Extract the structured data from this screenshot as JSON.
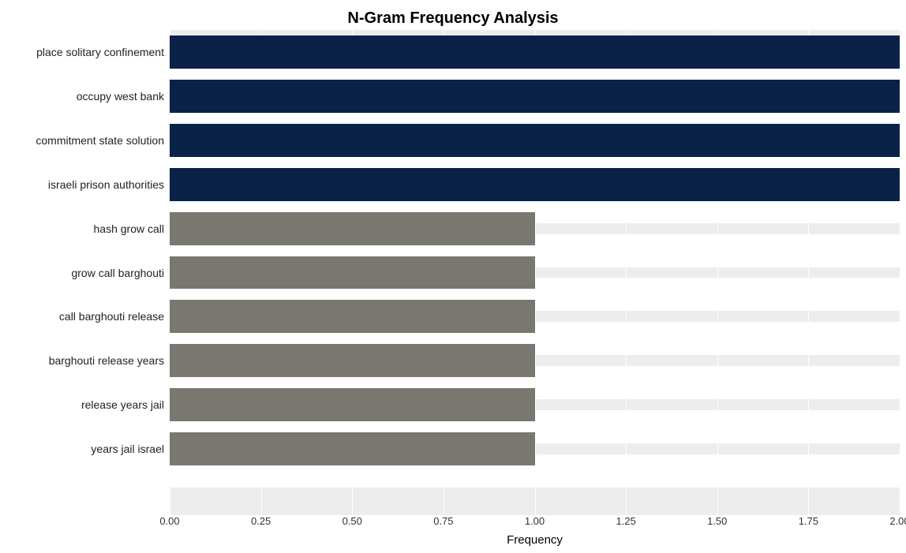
{
  "chart": {
    "type": "bar-horizontal",
    "title": "N-Gram Frequency Analysis",
    "title_fontsize": 20,
    "xlabel": "Frequency",
    "label_fontsize": 15,
    "tick_fontsize": 13,
    "xlim": [
      0,
      2.0
    ],
    "xtick_step": 0.25,
    "xticks": [
      "0.00",
      "0.25",
      "0.50",
      "0.75",
      "1.00",
      "1.25",
      "1.50",
      "1.75",
      "2.00"
    ],
    "background_color": "#ffffff",
    "grid_band_color": "#ededed",
    "grid_line_color": "#ffffff",
    "bar_height_ratio": 0.75,
    "categories": [
      "place solitary confinement",
      "occupy west bank",
      "commitment state solution",
      "israeli prison authorities",
      "hash grow call",
      "grow call barghouti",
      "call barghouti release",
      "barghouti release years",
      "release years jail",
      "years jail israel"
    ],
    "values": [
      2.0,
      2.0,
      2.0,
      2.0,
      1.0,
      1.0,
      1.0,
      1.0,
      1.0,
      1.0
    ],
    "bar_colors": [
      "#0a2247",
      "#0a2247",
      "#0a2247",
      "#0a2247",
      "#7a7770",
      "#7a7770",
      "#7a7770",
      "#7a7770",
      "#7a7770",
      "#7a7770"
    ]
  }
}
